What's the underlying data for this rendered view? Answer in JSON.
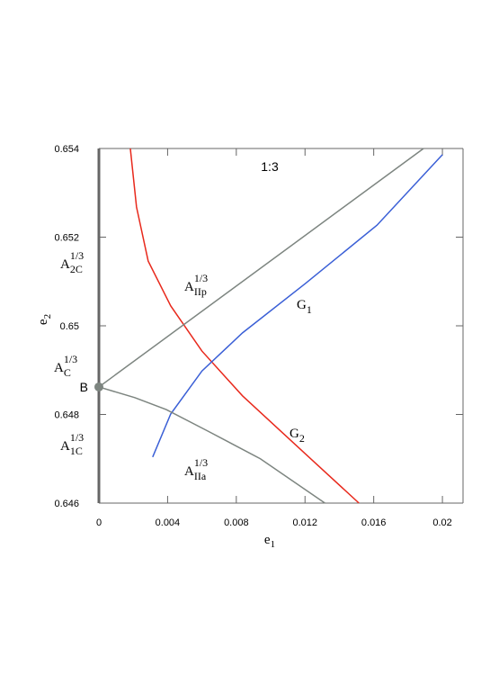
{
  "chart_data": {
    "type": "line",
    "title": "1:3",
    "x_label": {
      "text": "e",
      "sub": "1"
    },
    "y_label": {
      "text": "e",
      "sub": "2"
    },
    "xlim": [
      0,
      0.0212
    ],
    "ylim": [
      0.646,
      0.654
    ],
    "xticks": [
      0,
      0.004,
      0.008,
      0.012,
      0.016,
      0.02
    ],
    "yticks": [
      0.646,
      0.648,
      0.65,
      0.652,
      0.654
    ],
    "series": [
      {
        "color": "#e8291c",
        "x": [
          0.00183,
          0.00219,
          0.00287,
          0.00418,
          0.006,
          0.00836,
          0.01149,
          0.01514
        ],
        "values": [
          0.654,
          0.65268,
          0.65146,
          0.65045,
          0.64943,
          0.64842,
          0.6473,
          0.646
        ]
      },
      {
        "color": "#3a5fd6",
        "x": [
          0.00313,
          0.00418,
          0.006,
          0.00836,
          0.01201,
          0.01619,
          0.02
        ],
        "values": [
          0.64704,
          0.64801,
          0.64898,
          0.64984,
          0.65095,
          0.65227,
          0.65386
        ]
      },
      {
        "color": "#7d8580",
        "x": [
          0,
          0.0189
        ],
        "values": [
          0.64862,
          0.654
        ]
      },
      {
        "color": "#7d8580",
        "x": [
          0,
          0.00209,
          0.00392,
          0.00627,
          0.0094,
          0.01316
        ],
        "values": [
          0.64862,
          0.64838,
          0.64811,
          0.64764,
          0.647,
          0.646
        ]
      }
    ],
    "point": {
      "label": "B",
      "x": 0,
      "y": 0.64862,
      "color": "#7d8580"
    },
    "annotations": [
      {
        "text": "A",
        "sub": "2C",
        "sup": "1/3"
      },
      {
        "text": "A",
        "sub": "C",
        "sup": "1/3"
      },
      {
        "text": "A",
        "sub": "1C",
        "sup": "1/3"
      },
      {
        "text": "A",
        "sub": "IIp",
        "sup": "1/3"
      },
      {
        "text": "A",
        "sub": "IIa",
        "sup": "1/3"
      },
      {
        "text": "G",
        "sub": "1"
      },
      {
        "text": "G",
        "sub": "2"
      }
    ]
  }
}
